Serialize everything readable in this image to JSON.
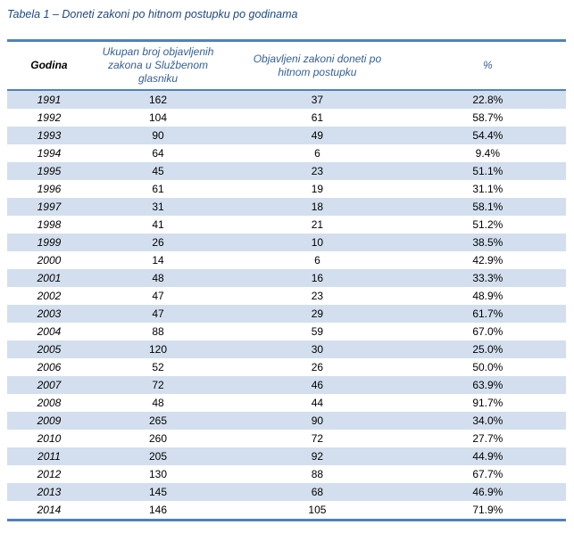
{
  "caption": "Tabela 1 – Doneti zakoni po hitnom postupku po godinama",
  "colors": {
    "accent_border": "#4f81bd",
    "row_band": "#d3dfee",
    "header_text": "#365f91",
    "caption_text": "#1f497d",
    "body_text": "#000000"
  },
  "table": {
    "columns": [
      {
        "label": "Godina"
      },
      {
        "label": "Ukupan broj objavljenih zakona u Službenom glasniku"
      },
      {
        "label": "Objavljeni zakoni doneti po hitnom postupku"
      },
      {
        "label": "%"
      }
    ],
    "rows": [
      {
        "year": "1991",
        "total": "162",
        "urgent": "37",
        "percent": "22.8%"
      },
      {
        "year": "1992",
        "total": "104",
        "urgent": "61",
        "percent": "58.7%"
      },
      {
        "year": "1993",
        "total": "90",
        "urgent": "49",
        "percent": "54.4%"
      },
      {
        "year": "1994",
        "total": "64",
        "urgent": "6",
        "percent": "9.4%"
      },
      {
        "year": "1995",
        "total": "45",
        "urgent": "23",
        "percent": "51.1%"
      },
      {
        "year": "1996",
        "total": "61",
        "urgent": "19",
        "percent": "31.1%"
      },
      {
        "year": "1997",
        "total": "31",
        "urgent": "18",
        "percent": "58.1%"
      },
      {
        "year": "1998",
        "total": "41",
        "urgent": "21",
        "percent": "51.2%"
      },
      {
        "year": "1999",
        "total": "26",
        "urgent": "10",
        "percent": "38.5%"
      },
      {
        "year": "2000",
        "total": "14",
        "urgent": "6",
        "percent": "42.9%"
      },
      {
        "year": "2001",
        "total": "48",
        "urgent": "16",
        "percent": "33.3%"
      },
      {
        "year": "2002",
        "total": "47",
        "urgent": "23",
        "percent": "48.9%"
      },
      {
        "year": "2003",
        "total": "47",
        "urgent": "29",
        "percent": "61.7%"
      },
      {
        "year": "2004",
        "total": "88",
        "urgent": "59",
        "percent": "67.0%"
      },
      {
        "year": "2005",
        "total": "120",
        "urgent": "30",
        "percent": "25.0%"
      },
      {
        "year": "2006",
        "total": "52",
        "urgent": "26",
        "percent": "50.0%"
      },
      {
        "year": "2007",
        "total": "72",
        "urgent": "46",
        "percent": "63.9%"
      },
      {
        "year": "2008",
        "total": "48",
        "urgent": "44",
        "percent": "91.7%"
      },
      {
        "year": "2009",
        "total": "265",
        "urgent": "90",
        "percent": "34.0%"
      },
      {
        "year": "2010",
        "total": "260",
        "urgent": "72",
        "percent": "27.7%"
      },
      {
        "year": "2011",
        "total": "205",
        "urgent": "92",
        "percent": "44.9%"
      },
      {
        "year": "2012",
        "total": "130",
        "urgent": "88",
        "percent": "67.7%"
      },
      {
        "year": "2013",
        "total": "145",
        "urgent": "68",
        "percent": "46.9%"
      },
      {
        "year": "2014",
        "total": "146",
        "urgent": "105",
        "percent": "71.9%"
      }
    ]
  }
}
